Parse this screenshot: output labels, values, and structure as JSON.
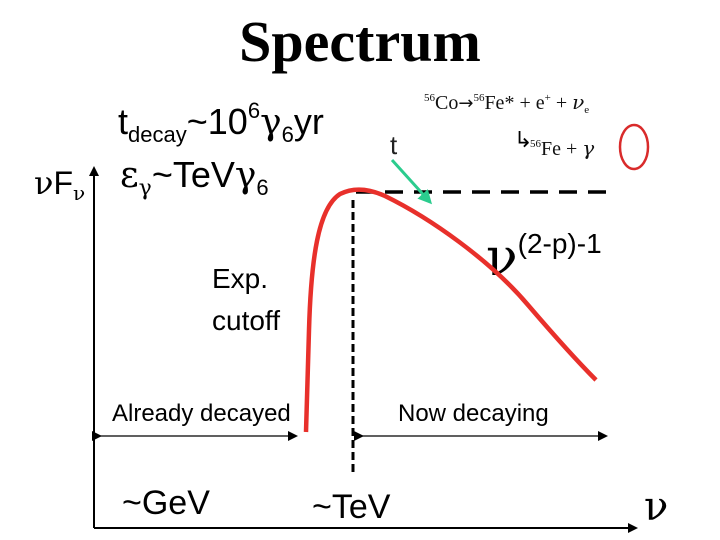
{
  "title": "Spectrum",
  "y_axis": {
    "symbol": "ν",
    "letter": "F",
    "subscript": "ν"
  },
  "decay_time": {
    "t": "t",
    "sub": "decay",
    "approx": "~10",
    "sup": "6",
    "gamma": "γ",
    "gsub": "6",
    "unit": "yr"
  },
  "photon_energy": {
    "eps": "ε",
    "sub": "γ",
    "text": "~TeV",
    "gamma": "γ",
    "gsub": "6"
  },
  "t_label": "t",
  "cutoff_label": {
    "line1": "Exp.",
    "line2": "cutoff"
  },
  "power_law": {
    "nu": "ν",
    "exponent": "(2-p)-1"
  },
  "regions": {
    "left": "Already decayed",
    "right": "Now decaying"
  },
  "x_ticks": {
    "low": "~GeV",
    "mid": "~TeV"
  },
  "x_axis_symbol": "ν",
  "decay_chain": {
    "eq1": {
      "a_sup": "56",
      "a": "Co",
      "arrow": "→",
      "b_sup": "56",
      "b": "Fe*",
      "plus1": " + e",
      "e_sup": "+",
      "plus2": " + ",
      "nu": "ν",
      "nu_sub": "e"
    },
    "eq2": {
      "hook": "↳",
      "c_sup": "56",
      "c": "Fe + ",
      "gamma": "γ"
    }
  },
  "colors": {
    "curve": "#e8302b",
    "dashes": "#000000",
    "arrow": "#2bcc8e",
    "circle": "#d92b2b"
  }
}
